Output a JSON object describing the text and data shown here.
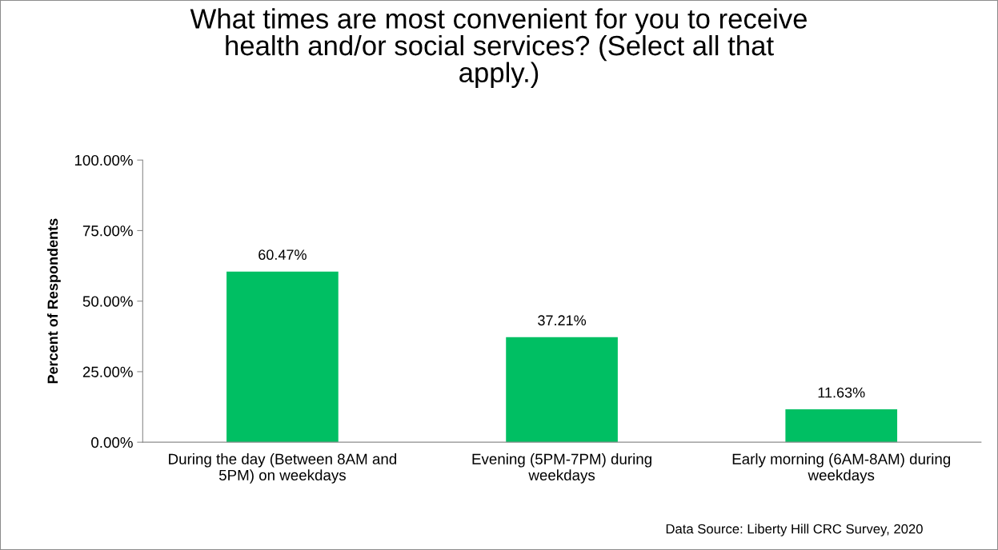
{
  "chart_data": {
    "type": "bar",
    "title": "What times are most convenient for you to receive\nhealth and/or social services? (Select all that\napply.)",
    "ylabel": "Percent of Respondents",
    "categories": [
      "During the day (Between 8AM and\n5PM) on weekdays",
      "Evening (5PM-7PM) during\nweekdays",
      "Early morning (6AM-8AM) during\nweekdays"
    ],
    "values": [
      60.47,
      37.21,
      11.63
    ],
    "value_labels": [
      "60.47%",
      "37.21%",
      "11.63%"
    ],
    "color": "#00bf63",
    "ylim": [
      0,
      100
    ],
    "yticks": [
      {
        "value": 0,
        "label": "0.00%"
      },
      {
        "value": 25,
        "label": "25.00%"
      },
      {
        "value": 50,
        "label": "50.00%"
      },
      {
        "value": 75,
        "label": "75.00%"
      },
      {
        "value": 100,
        "label": "100.00%"
      }
    ],
    "grid": false,
    "legend": false,
    "annotations": [
      "Data Source: Liberty Hill CRC Survey, 2020"
    ]
  }
}
